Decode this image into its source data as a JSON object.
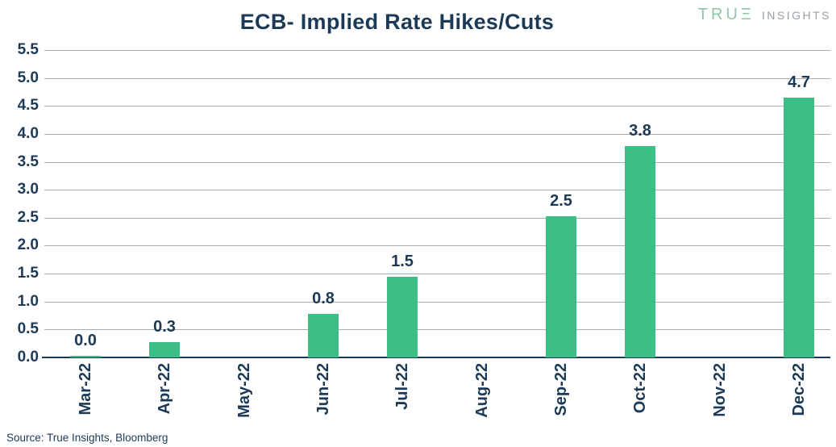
{
  "header": {
    "title": "ECB- Implied Rate Hikes/Cuts",
    "logo": {
      "brand": "TRUΞ",
      "suffix": "INSIGHTS"
    }
  },
  "footer": {
    "source": "Source: True Insights, Bloomberg"
  },
  "colors": {
    "bar_green": "#3cbe84",
    "navy_text": "#1c3a56",
    "gridline_gray": "#acacac",
    "logo_green": "#8fc7a8",
    "logo_gray": "#99a0a6"
  },
  "chart_data": {
    "type": "bar",
    "title": "ECB- Implied Rate Hikes/Cuts",
    "xlabel": "",
    "ylabel": "",
    "categories": [
      "Mar-22",
      "Apr-22",
      "May-22",
      "Jun-22",
      "Jul-22",
      "Aug-22",
      "Sep-22",
      "Oct-22",
      "Nov-22",
      "Dec-22"
    ],
    "values": [
      0.03,
      0.28,
      null,
      0.78,
      1.45,
      null,
      2.53,
      3.78,
      null,
      4.65
    ],
    "data_labels": [
      "0.0",
      "0.3",
      null,
      "0.8",
      "1.5",
      null,
      "2.5",
      "3.8",
      null,
      "4.7"
    ],
    "ylim": [
      0,
      5.5
    ],
    "ytick_step": 0.5,
    "yticks": [
      "5.5",
      "5.0",
      "4.5",
      "4.0",
      "3.5",
      "3.0",
      "2.5",
      "2.0",
      "1.5",
      "1.0",
      "0.5",
      "0.0"
    ],
    "grid": true,
    "legend": false,
    "bar_color": "#3cbe84"
  }
}
